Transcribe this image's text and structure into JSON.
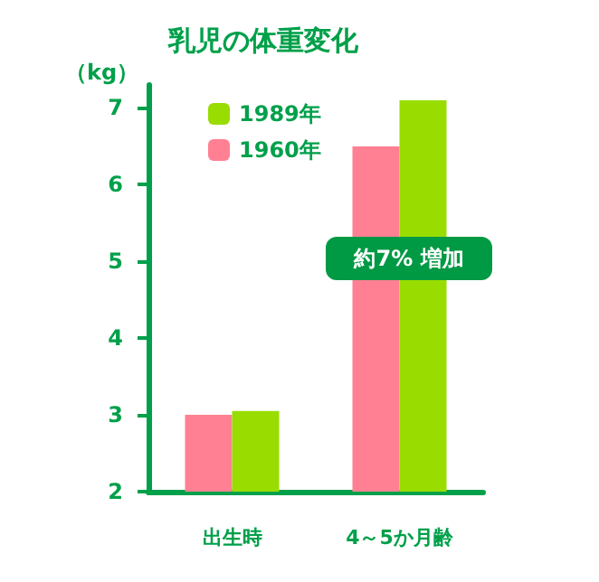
{
  "chart_data": {
    "type": "bar",
    "title": "乳児の体重変化",
    "ylabel": "（kg）",
    "categories": [
      "出生時",
      "4～5か月齢"
    ],
    "series": [
      {
        "name": "1960年",
        "color": "#ff8092",
        "values": [
          3.0,
          6.5
        ]
      },
      {
        "name": "1989年",
        "color": "#99dd00",
        "values": [
          3.05,
          7.1
        ]
      }
    ],
    "ylim": [
      2,
      7.3
    ],
    "yticks": [
      2,
      3,
      4,
      5,
      6,
      7
    ],
    "grid": false,
    "legend": "top left",
    "annotations": [
      "約7% 増加"
    ]
  }
}
